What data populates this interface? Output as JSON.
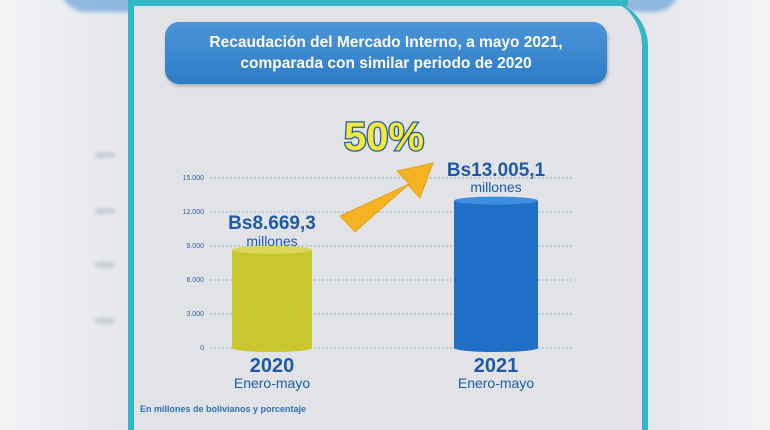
{
  "title": {
    "line1": "Recaudación del Mercado Interno, a mayo 2021,",
    "line2": "comparada con similar periodo de 2020"
  },
  "footnote": "En millones de bolivianos y porcentaje",
  "colors": {
    "accent": "#33b6c6",
    "title_bg": "#3888d0",
    "bar_2020": "#c9c72d",
    "bar_2021": "#1f6fc6",
    "arrow": "#f5b324",
    "value_text": "#1e5aa8"
  },
  "chart_data": {
    "type": "bar",
    "categories": [
      "2020",
      "2021"
    ],
    "category_sublabels": [
      "Enero-mayo",
      "Enero-mayo"
    ],
    "values": [
      8669.3,
      13005.1
    ],
    "value_labels": [
      {
        "value": "Bs8.669,3",
        "unit": "millones"
      },
      {
        "value": "Bs13.005,1",
        "unit": "millones"
      }
    ],
    "yticks": [
      "0",
      "3.000",
      "6.000",
      "9.000",
      "12.000",
      "15.000"
    ],
    "ytick_values": [
      0,
      3000,
      6000,
      9000,
      12000,
      15000
    ],
    "ylim": [
      0,
      15000
    ],
    "grid": true,
    "annotation": "50%"
  }
}
